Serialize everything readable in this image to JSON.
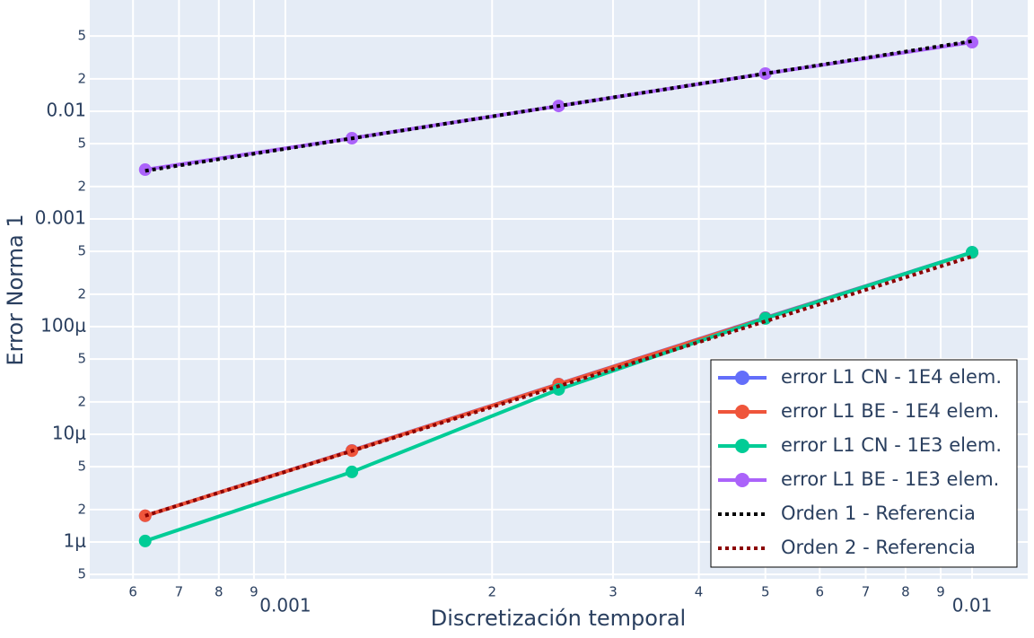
{
  "chart_data": {
    "type": "line",
    "x_label": "Discretización temporal",
    "y_label": "Error Norma 1",
    "x": [
      0.000625,
      0.00125,
      0.0025,
      0.005,
      0.01
    ],
    "log_x": true,
    "log_y": true,
    "grid": true,
    "legend_position": "bottom right",
    "xlim": [
      0.000519,
      0.01205
    ],
    "ylim": [
      4.55e-07,
      0.108
    ],
    "xticks": [
      {
        "value": 0.0006,
        "label": "6"
      },
      {
        "value": 0.0007,
        "label": "7"
      },
      {
        "value": 0.0008,
        "label": "8"
      },
      {
        "value": 0.0009,
        "label": "9"
      },
      0.001,
      {
        "value": 0.002,
        "label": "2"
      },
      {
        "value": 0.003,
        "label": "3"
      },
      {
        "value": 0.004,
        "label": "4"
      },
      {
        "value": 0.005,
        "label": "5"
      },
      {
        "value": 0.006,
        "label": "6"
      },
      {
        "value": 0.007,
        "label": "7"
      },
      {
        "value": 0.008,
        "label": "8"
      },
      {
        "value": 0.009,
        "label": "9"
      },
      0.01
    ],
    "yticks": [
      {
        "value": 5e-07,
        "label": "5"
      },
      {
        "value": 1e-06,
        "label": "1μ"
      },
      {
        "value": 2e-06,
        "label": "2"
      },
      {
        "value": 5e-06,
        "label": "5"
      },
      {
        "value": 1e-05,
        "label": "10μ"
      },
      {
        "value": 2e-05,
        "label": "2"
      },
      {
        "value": 5e-05,
        "label": "5"
      },
      {
        "value": 0.0001,
        "label": "100μ"
      },
      {
        "value": 0.0002,
        "label": "2"
      },
      {
        "value": 0.0005,
        "label": "5"
      },
      0.001,
      {
        "value": 0.002,
        "label": "2"
      },
      {
        "value": 0.005,
        "label": "5"
      },
      0.01,
      {
        "value": 0.02,
        "label": "2"
      },
      {
        "value": 0.05,
        "label": "5"
      }
    ],
    "series": [
      {
        "name": "error L1 CN - 1E4 elem.",
        "color": "#636efa",
        "markers": true,
        "dash": "solid",
        "values": [
          1.75e-06,
          7.08e-06,
          2.93e-05,
          0.000121,
          0.00049
        ]
      },
      {
        "name": "error L1 BE - 1E4 elem.",
        "color": "#ef553b",
        "markers": true,
        "dash": "solid",
        "values": [
          1.75e-06,
          7.05e-06,
          2.92e-05,
          0.00012,
          0.000488
        ]
      },
      {
        "name": "error L1 CN - 1E3 elem.",
        "color": "#00cc96",
        "markers": true,
        "dash": "solid",
        "values": [
          1.02e-06,
          4.47e-06,
          2.61e-05,
          0.000119,
          0.00049
        ]
      },
      {
        "name": "error L1 BE - 1E3 elem.",
        "color": "#ab63fa",
        "markers": true,
        "dash": "solid",
        "values": [
          0.00287,
          0.00562,
          0.0112,
          0.0224,
          0.0438
        ]
      },
      {
        "name": "Orden 1 - Referencia",
        "color": "#000000",
        "markers": false,
        "dash": "dot",
        "values": [
          0.0028,
          0.0056,
          0.0112,
          0.0224,
          0.0448
        ]
      },
      {
        "name": "Orden 2 - Referencia",
        "color": "#8b0000",
        "markers": false,
        "dash": "dot",
        "values": [
          1.75e-06,
          7e-06,
          2.8e-05,
          0.000112,
          0.000448
        ]
      }
    ]
  }
}
